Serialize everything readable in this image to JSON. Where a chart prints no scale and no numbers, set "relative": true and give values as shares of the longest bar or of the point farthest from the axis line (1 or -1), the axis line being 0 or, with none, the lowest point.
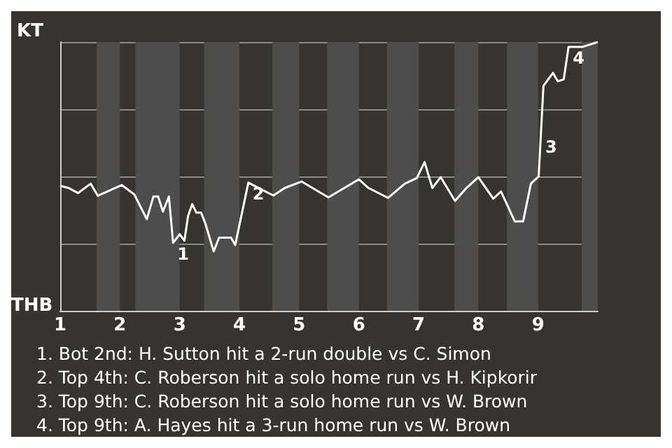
{
  "chart_data": {
    "type": "line",
    "relative": true,
    "x": [
      1.0,
      1.14,
      1.3,
      1.51,
      1.63,
      2.03,
      2.24,
      2.45,
      2.56,
      2.64,
      2.72,
      2.82,
      2.89,
      3.0,
      3.08,
      3.14,
      3.21,
      3.28,
      3.36,
      3.43,
      3.57,
      3.66,
      3.86,
      3.93,
      4.15,
      4.39,
      4.57,
      4.76,
      5.04,
      5.49,
      6.0,
      6.16,
      6.49,
      6.77,
      6.97,
      7.1,
      7.23,
      7.37,
      7.61,
      7.8,
      8.0,
      8.25,
      8.38,
      8.61,
      8.75,
      8.88,
      9.01,
      9.09,
      9.25,
      9.33,
      9.43,
      9.51,
      9.75,
      10.0
    ],
    "series": [
      {
        "color": "#ffffff",
        "values": [
          0.465,
          0.457,
          0.438,
          0.473,
          0.428,
          0.468,
          0.433,
          0.341,
          0.425,
          0.425,
          0.369,
          0.425,
          0.253,
          0.285,
          0.261,
          0.352,
          0.397,
          0.365,
          0.365,
          0.325,
          0.221,
          0.272,
          0.272,
          0.245,
          0.477,
          0.449,
          0.429,
          0.457,
          0.481,
          0.422,
          0.489,
          0.457,
          0.42,
          0.473,
          0.494,
          0.553,
          0.457,
          0.497,
          0.409,
          0.457,
          0.497,
          0.417,
          0.444,
          0.333,
          0.333,
          0.473,
          0.5,
          0.837,
          0.885,
          0.854,
          0.861,
          0.982,
          0.982,
          1
        ]
      }
    ],
    "xlim": [
      1,
      10
    ],
    "xticks": [
      1,
      2,
      3,
      4,
      5,
      6,
      7,
      8,
      9
    ],
    "grid": "y",
    "marker": "none",
    "bands": [
      {
        "axis": "x",
        "from": 1.61,
        "to": 2,
        "color": "#4e4d4b"
      },
      {
        "axis": "x",
        "from": 2.26,
        "to": 3,
        "color": "#4e4d4b"
      },
      {
        "axis": "x",
        "from": 3.41,
        "to": 4,
        "color": "#4e4d4b"
      },
      {
        "axis": "x",
        "from": 4.55,
        "to": 5,
        "color": "#4e4d4b"
      },
      {
        "axis": "x",
        "from": 5.47,
        "to": 6,
        "color": "#4e4d4b"
      },
      {
        "axis": "x",
        "from": 6.47,
        "to": 7,
        "color": "#4e4d4b"
      },
      {
        "axis": "x",
        "from": 7.6,
        "to": 8,
        "color": "#4e4d4b"
      },
      {
        "axis": "x",
        "from": 8.48,
        "to": 9,
        "color": "#4e4d4b"
      },
      {
        "axis": "x",
        "from": 9.73,
        "to": 10,
        "color": "#4e4d4b"
      }
    ],
    "annotations": [
      "KT",
      "THB",
      "1. Bot 2nd: H. Sutton hit a 2-run double vs C. Simon",
      "2. Top 4th: C. Roberson hit a solo home run vs H. Kipkorir",
      "3. Top 9th: C. Roberson hit a solo home run vs W. Brown",
      "4. Top 9th: A. Hayes hit a 3-run home run vs W. Brown",
      {
        "text": "1",
        "x": 2.89,
        "y": 0.253
      },
      {
        "text": "2",
        "x": 4.15,
        "y": 0.477
      },
      {
        "text": "3",
        "x": 9.05,
        "y": 0.65
      },
      {
        "text": "4",
        "x": 9.51,
        "y": 0.982
      }
    ]
  }
}
